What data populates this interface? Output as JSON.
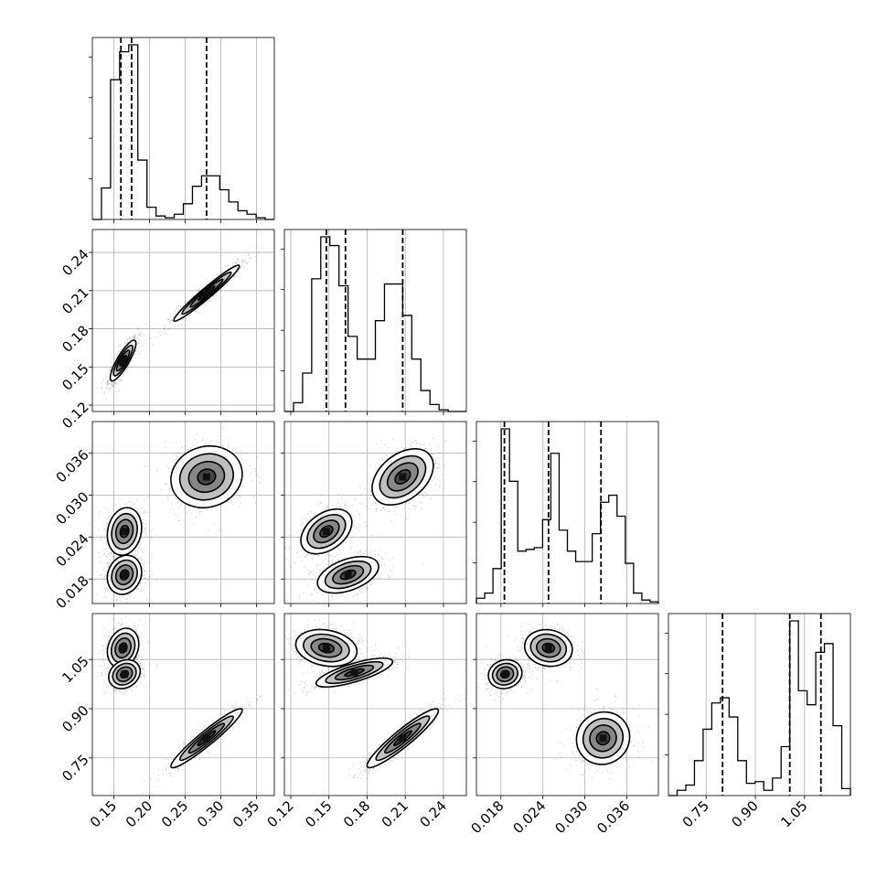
{
  "chart_data": {
    "type": "corner",
    "grid": true,
    "quantiles_style": "dashed",
    "parameters": [
      {
        "range": [
          0.12,
          0.375
        ],
        "tick_values": [
          0.15,
          0.2,
          0.25,
          0.3,
          0.35
        ],
        "tick_labels": [
          "0.15",
          "0.20",
          "0.25",
          "0.30",
          "0.35"
        ],
        "quantiles": [
          0.16,
          0.175,
          0.28
        ],
        "hist": [
          0.0,
          0.18,
          0.8,
          0.96,
          1.0,
          0.34,
          0.07,
          0.02,
          0.01,
          0.03,
          0.09,
          0.19,
          0.25,
          0.25,
          0.17,
          0.1,
          0.05,
          0.03,
          0.01,
          0.0
        ],
        "modes": [
          [
            0.163,
            0.012,
            1.0
          ],
          [
            0.28,
            0.028,
            0.26
          ]
        ]
      },
      {
        "range": [
          0.115,
          0.258
        ],
        "tick_values": [
          0.12,
          0.15,
          0.18,
          0.21,
          0.24
        ],
        "tick_labels": [
          "0.12",
          "0.15",
          "0.18",
          "0.21",
          "0.24"
        ],
        "quantiles": [
          0.148,
          0.163,
          0.208
        ],
        "hist": [
          0.0,
          0.05,
          0.22,
          0.76,
          1.0,
          0.95,
          0.72,
          0.43,
          0.3,
          0.3,
          0.52,
          0.73,
          0.73,
          0.55,
          0.3,
          0.12,
          0.04,
          0.01,
          0.0,
          0.0
        ],
        "modes": [
          [
            0.155,
            0.009,
            1.0
          ],
          [
            0.21,
            0.012,
            0.75
          ]
        ]
      },
      {
        "range": [
          0.0145,
          0.0405
        ],
        "tick_values": [
          0.018,
          0.024,
          0.03,
          0.036
        ],
        "tick_labels": [
          "0.018",
          "0.024",
          "0.030",
          "0.036"
        ],
        "quantiles": [
          0.0185,
          0.0248,
          0.0323
        ],
        "hist": [
          0.03,
          0.06,
          0.2,
          1.0,
          0.7,
          0.3,
          0.31,
          0.32,
          0.48,
          0.86,
          0.42,
          0.3,
          0.24,
          0.24,
          0.4,
          0.58,
          0.62,
          0.5,
          0.23,
          0.06,
          0.02,
          0.01
        ],
        "modes": [
          [
            0.0186,
            0.0013,
            1.0
          ],
          [
            0.0248,
            0.0015,
            0.95
          ],
          [
            0.0326,
            0.002,
            0.95
          ]
        ]
      },
      {
        "range": [
          0.635,
          1.19
        ],
        "tick_values": [
          0.75,
          0.9,
          1.05
        ],
        "tick_labels": [
          "0.75",
          "0.90",
          "1.05"
        ],
        "quantiles": [
          0.8,
          1.005,
          1.1
        ],
        "hist": [
          0.0,
          0.03,
          0.06,
          0.2,
          0.38,
          0.53,
          0.56,
          0.45,
          0.2,
          0.07,
          0.08,
          0.03,
          0.1,
          0.28,
          1.0,
          0.6,
          0.52,
          0.82,
          0.87,
          0.4,
          0.04
        ],
        "modes": [
          [
            0.79,
            0.035,
            0.55
          ],
          [
            1.0,
            0.012,
            1.0
          ],
          [
            1.09,
            0.02,
            0.85
          ]
        ]
      }
    ],
    "blobs": {
      "1-0": [
        {
          "mx": 0.163,
          "my": 0.155,
          "sx": 0.009,
          "sy": 0.008,
          "rho": 0.85,
          "w": 0.55
        },
        {
          "mx": 0.28,
          "my": 0.208,
          "sx": 0.023,
          "sy": 0.011,
          "rho": 0.97,
          "w": 0.45
        }
      ],
      "2-0": [
        {
          "mx": 0.165,
          "my": 0.0248,
          "sx": 0.012,
          "sy": 0.0017,
          "rho": 0.15,
          "w": 0.34
        },
        {
          "mx": 0.165,
          "my": 0.0186,
          "sx": 0.012,
          "sy": 0.0014,
          "rho": 0.15,
          "w": 0.33
        },
        {
          "mx": 0.28,
          "my": 0.0326,
          "sx": 0.025,
          "sy": 0.0022,
          "rho": 0.1,
          "w": 0.33
        }
      ],
      "2-1": [
        {
          "mx": 0.148,
          "my": 0.0248,
          "sx": 0.01,
          "sy": 0.0016,
          "rho": 0.4,
          "w": 0.34
        },
        {
          "mx": 0.165,
          "my": 0.0186,
          "sx": 0.012,
          "sy": 0.0013,
          "rho": 0.45,
          "w": 0.33
        },
        {
          "mx": 0.208,
          "my": 0.0326,
          "sx": 0.012,
          "sy": 0.002,
          "rho": 0.4,
          "w": 0.33
        }
      ],
      "3-0": [
        {
          "mx": 0.163,
          "my": 1.085,
          "sx": 0.011,
          "sy": 0.03,
          "rho": 0.2,
          "w": 0.33
        },
        {
          "mx": 0.165,
          "my": 1.005,
          "sx": 0.011,
          "sy": 0.022,
          "rho": 0.2,
          "w": 0.34
        },
        {
          "mx": 0.28,
          "my": 0.81,
          "sx": 0.025,
          "sy": 0.045,
          "rho": 0.95,
          "w": 0.33
        }
      ],
      "3-1": [
        {
          "mx": 0.148,
          "my": 1.085,
          "sx": 0.012,
          "sy": 0.028,
          "rho": -0.2,
          "w": 0.33
        },
        {
          "mx": 0.17,
          "my": 1.01,
          "sx": 0.015,
          "sy": 0.022,
          "rho": 0.75,
          "w": 0.34
        },
        {
          "mx": 0.208,
          "my": 0.81,
          "sx": 0.014,
          "sy": 0.045,
          "rho": 0.93,
          "w": 0.33
        }
      ],
      "3-2": [
        {
          "mx": 0.0186,
          "my": 1.005,
          "sx": 0.0012,
          "sy": 0.022,
          "rho": 0.1,
          "w": 0.34
        },
        {
          "mx": 0.0248,
          "my": 1.085,
          "sx": 0.0017,
          "sy": 0.028,
          "rho": -0.1,
          "w": 0.33
        },
        {
          "mx": 0.0326,
          "my": 0.81,
          "sx": 0.0019,
          "sy": 0.04,
          "rho": 0.05,
          "w": 0.33
        }
      ]
    }
  }
}
